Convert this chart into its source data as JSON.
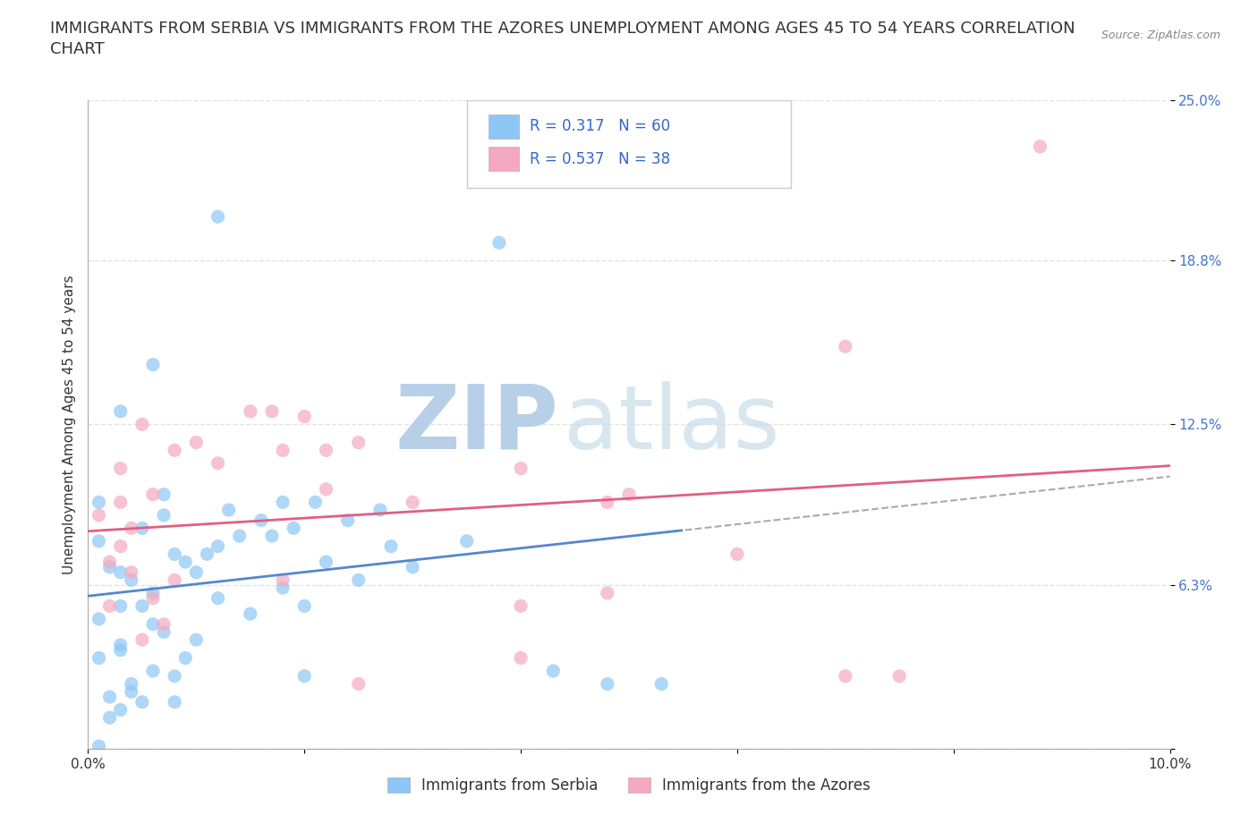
{
  "title_line1": "IMMIGRANTS FROM SERBIA VS IMMIGRANTS FROM THE AZORES UNEMPLOYMENT AMONG AGES 45 TO 54 YEARS CORRELATION",
  "title_line2": "CHART",
  "source_text": "Source: ZipAtlas.com",
  "ylabel": "Unemployment Among Ages 45 to 54 years",
  "xlim": [
    0.0,
    0.1
  ],
  "ylim": [
    0.0,
    0.25
  ],
  "xticks": [
    0.0,
    0.02,
    0.04,
    0.06,
    0.08,
    0.1
  ],
  "xticklabels": [
    "0.0%",
    "",
    "",
    "",
    "",
    "10.0%"
  ],
  "ytick_positions": [
    0.0,
    0.063,
    0.125,
    0.188,
    0.25
  ],
  "ytick_labels": [
    "",
    "6.3%",
    "12.5%",
    "18.8%",
    "25.0%"
  ],
  "serbia_color": "#8ec6f5",
  "azores_color": "#f5a8c0",
  "serbia_line_color": "#5588cc",
  "azores_line_color": "#e06080",
  "serbia_R": 0.317,
  "serbia_N": 60,
  "azores_R": 0.537,
  "azores_N": 38,
  "watermark_zip": "ZIP",
  "watermark_atlas": "atlas",
  "watermark_color_zip": "#c8ddf0",
  "watermark_color_atlas": "#c8ddf0",
  "grid_color": "#dddddd",
  "background_color": "#ffffff",
  "title_fontsize": 13,
  "axis_label_fontsize": 11,
  "tick_fontsize": 11,
  "tick_color_right": "#4477cc",
  "legend_fontsize": 12,
  "serbia_x": [
    0.002,
    0.003,
    0.001,
    0.004,
    0.005,
    0.003,
    0.002,
    0.001,
    0.006,
    0.004,
    0.007,
    0.005,
    0.003,
    0.008,
    0.006,
    0.002,
    0.009,
    0.004,
    0.001,
    0.003,
    0.01,
    0.008,
    0.005,
    0.012,
    0.007,
    0.003,
    0.001,
    0.015,
    0.009,
    0.006,
    0.018,
    0.012,
    0.007,
    0.02,
    0.014,
    0.01,
    0.022,
    0.016,
    0.011,
    0.025,
    0.019,
    0.013,
    0.028,
    0.021,
    0.017,
    0.03,
    0.024,
    0.018,
    0.035,
    0.027,
    0.012,
    0.038,
    0.043,
    0.048,
    0.053,
    0.003,
    0.006,
    0.02,
    0.008,
    0.001
  ],
  "serbia_y": [
    0.02,
    0.015,
    0.035,
    0.025,
    0.018,
    0.04,
    0.012,
    0.05,
    0.03,
    0.022,
    0.045,
    0.055,
    0.038,
    0.028,
    0.06,
    0.07,
    0.035,
    0.065,
    0.08,
    0.055,
    0.042,
    0.075,
    0.085,
    0.058,
    0.09,
    0.068,
    0.095,
    0.052,
    0.072,
    0.048,
    0.062,
    0.078,
    0.098,
    0.055,
    0.082,
    0.068,
    0.072,
    0.088,
    0.075,
    0.065,
    0.085,
    0.092,
    0.078,
    0.095,
    0.082,
    0.07,
    0.088,
    0.095,
    0.08,
    0.092,
    0.205,
    0.195,
    0.03,
    0.025,
    0.025,
    0.13,
    0.148,
    0.028,
    0.018,
    0.001
  ],
  "azores_x": [
    0.002,
    0.004,
    0.003,
    0.005,
    0.001,
    0.006,
    0.003,
    0.002,
    0.007,
    0.004,
    0.008,
    0.005,
    0.003,
    0.01,
    0.006,
    0.015,
    0.008,
    0.02,
    0.012,
    0.025,
    0.018,
    0.03,
    0.022,
    0.04,
    0.048,
    0.05,
    0.048,
    0.06,
    0.07,
    0.075,
    0.017,
    0.022,
    0.018,
    0.04,
    0.04,
    0.088,
    0.07,
    0.025
  ],
  "azores_y": [
    0.055,
    0.068,
    0.078,
    0.042,
    0.09,
    0.058,
    0.095,
    0.072,
    0.048,
    0.085,
    0.065,
    0.125,
    0.108,
    0.118,
    0.098,
    0.13,
    0.115,
    0.128,
    0.11,
    0.118,
    0.115,
    0.095,
    0.1,
    0.108,
    0.095,
    0.098,
    0.06,
    0.075,
    0.155,
    0.028,
    0.13,
    0.115,
    0.065,
    0.055,
    0.035,
    0.232,
    0.028,
    0.025
  ]
}
